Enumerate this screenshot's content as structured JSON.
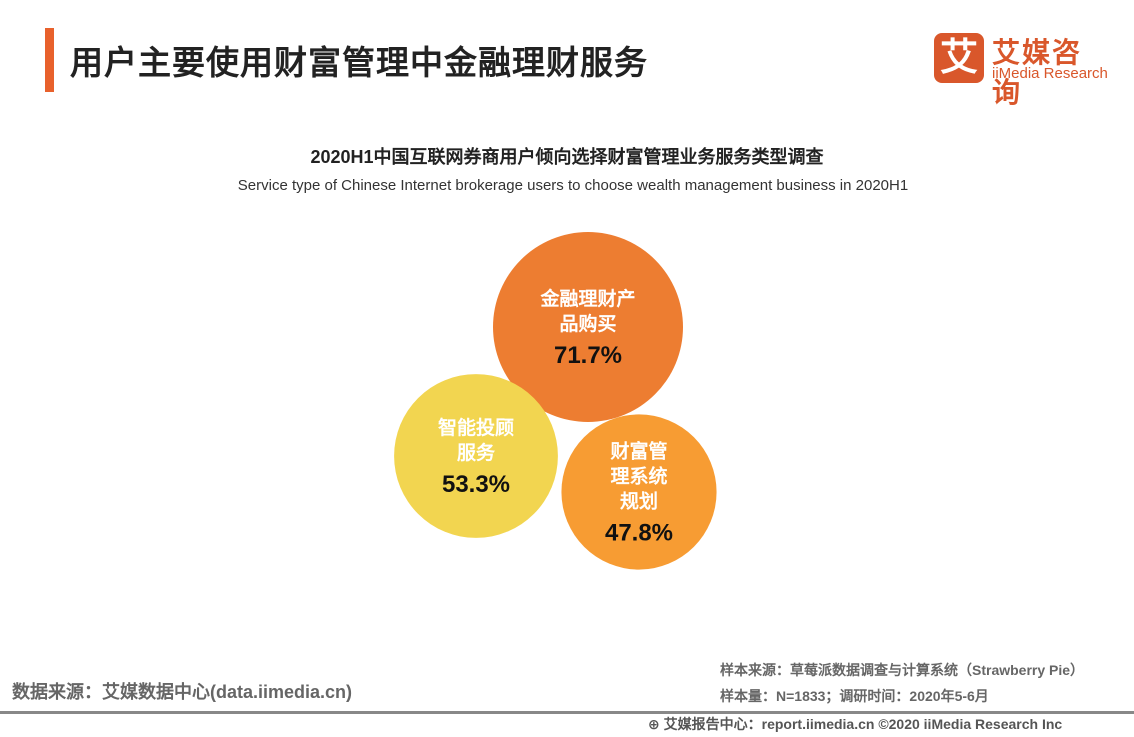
{
  "header": {
    "title": "用户主要使用财富管理中金融理财服务",
    "accent": "#E8612C"
  },
  "logo": {
    "mark": "艾",
    "cn": "艾媒咨询",
    "en": "iiMedia Research"
  },
  "chart_data": {
    "type": "bubble",
    "title": "2020H1中国互联网券商用户倾向选择财富管理业务服务类型调查",
    "subtitle": "Service type of Chinese Internet brokerage users to choose wealth management business in 2020H1",
    "series": [
      {
        "lines": [
          "金融理财产",
          "品购买"
        ],
        "value": 71.7,
        "label": "71.7%",
        "color": "#ED7D31"
      },
      {
        "lines": [
          "智能投顾",
          "服务"
        ],
        "value": 53.3,
        "label": "53.3%",
        "color": "#F2D550"
      },
      {
        "lines": [
          "财富管",
          "理系统",
          "规划"
        ],
        "value": 47.8,
        "label": "47.8%",
        "color": "#F79C33"
      }
    ]
  },
  "footer": {
    "source": "数据来源：艾媒数据中心(data.iimedia.cn)",
    "sample_source": "样本来源：草莓派数据调查与计算系统（Strawberry Pie）",
    "sample_size": "样本量：N=1833；调研时间：2020年5-6月",
    "copyright": "艾媒报告中心：report.iimedia.cn  ©2020  iiMedia Research  Inc"
  }
}
